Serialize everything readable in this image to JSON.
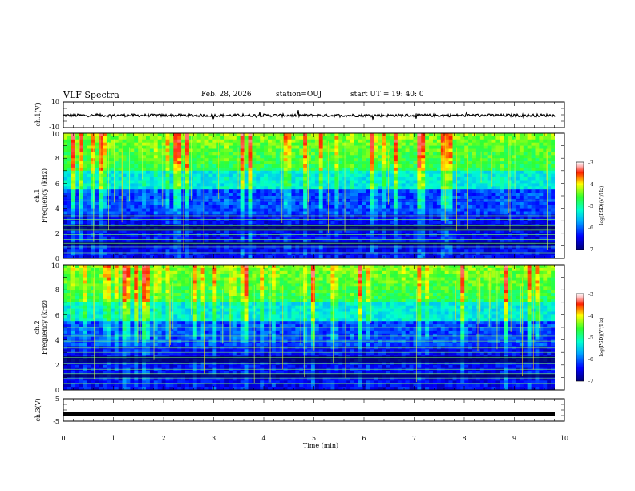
{
  "header": {
    "title": "VLF Spectra",
    "date": "Feb. 28, 2026",
    "station": "station=OUJ",
    "start_ut": "start  UT =   19: 40: 0"
  },
  "chart_data": [
    {
      "type": "line",
      "title": "ch.1(V)",
      "ylabel": "ch.1(V)",
      "ylim": [
        -10,
        10
      ],
      "y_ticks": [
        "10",
        "-10"
      ],
      "xlim": [
        0,
        10
      ],
      "description_value": "waveform amplitude near -0.5 V with noise"
    },
    {
      "type": "heatmap",
      "ylabel_top": "ch.1",
      "ylabel": "Frequency (kHz)",
      "ylim": [
        0,
        10
      ],
      "y_ticks": [
        "0",
        "2",
        "4",
        "6",
        "8",
        "10"
      ],
      "xlim": [
        0,
        10
      ],
      "colorbar": {
        "label": "log(PSD)(V²/Hz)",
        "range": [
          -7,
          -3
        ],
        "ticks": [
          "-3",
          "-4",
          "-5",
          "-6",
          "-7"
        ]
      },
      "line_frequencies_khz": [
        0.45,
        0.9,
        1.2,
        1.5,
        1.9,
        2.25,
        2.6,
        3.1,
        3.4,
        4.6
      ]
    },
    {
      "type": "heatmap",
      "ylabel_top": "ch.2",
      "ylabel": "Frequency (kHz)",
      "ylim": [
        0,
        10
      ],
      "y_ticks": [
        "0",
        "2",
        "4",
        "6",
        "8",
        "10"
      ],
      "xlim": [
        0,
        10
      ],
      "colorbar": {
        "label": "log(PSD)(V²/Hz)",
        "range": [
          -7,
          -3
        ],
        "ticks": [
          "-3",
          "-4",
          "-5",
          "-6",
          "-7"
        ]
      },
      "line_frequencies_khz": [
        0.5,
        0.95,
        1.3,
        1.65,
        2.1,
        2.6,
        3.0,
        3.35,
        3.9,
        4.3,
        5.0
      ]
    },
    {
      "type": "line",
      "title": "ch.3(V)",
      "ylabel": "ch.3(V)",
      "ylim": [
        -5,
        5
      ],
      "y_ticks": [
        "5",
        "-5"
      ],
      "xlim": [
        0,
        10
      ],
      "constant_value": -1.8
    }
  ],
  "xaxis": {
    "label": "Time (min)",
    "ticks": [
      "0",
      "1",
      "2",
      "3",
      "4",
      "5",
      "6",
      "7",
      "8",
      "9",
      "10"
    ]
  }
}
